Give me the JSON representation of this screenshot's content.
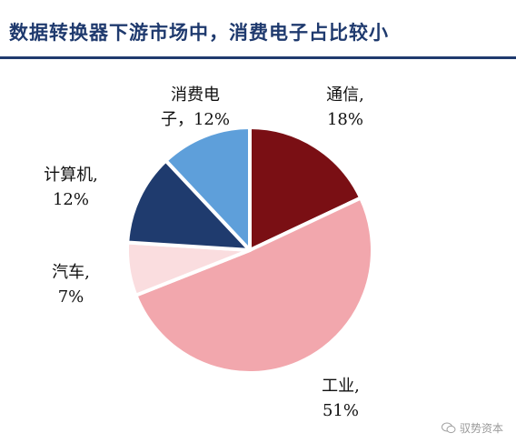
{
  "title": "数据转换器下游市场中，消费电子占比较小",
  "chart_data": {
    "type": "pie",
    "slices": [
      {
        "label": [
          "通信,",
          "18%"
        ],
        "value": 18,
        "color": "#7a0f14"
      },
      {
        "label": [
          "工业,",
          "51%"
        ],
        "value": 51,
        "color": "#f2a7ad"
      },
      {
        "label": [
          "汽车,",
          "7%"
        ],
        "value": 7,
        "color": "#fadddf"
      },
      {
        "label": [
          "计算机,",
          "12%"
        ],
        "value": 12,
        "color": "#1f3b6e"
      },
      {
        "label": [
          "消费电",
          "子，12%"
        ],
        "value": 12,
        "color": "#5e9fda"
      }
    ],
    "start_angle_deg": 0,
    "direction": "clockwise"
  },
  "watermark": {
    "icon": "wechat-icon",
    "text": "驭势资本"
  }
}
